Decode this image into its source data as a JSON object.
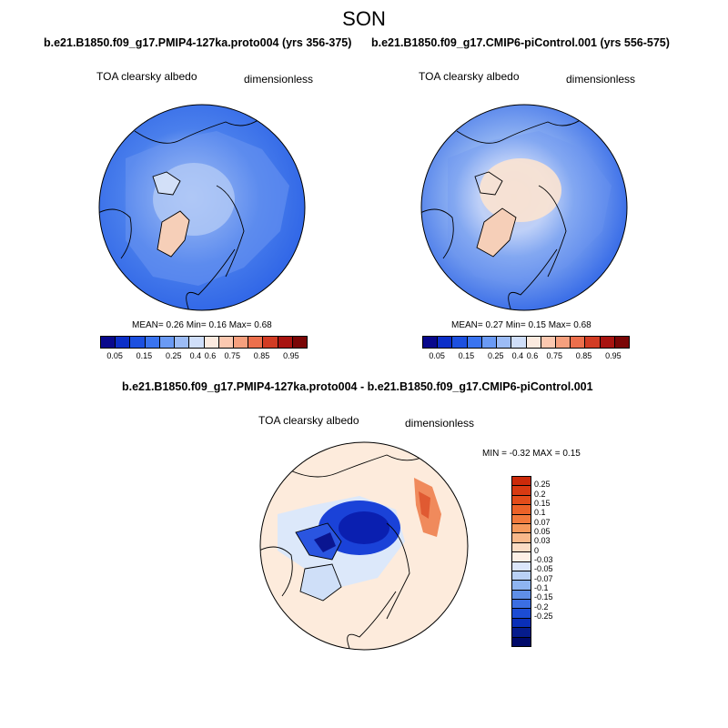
{
  "season": "SON",
  "left_panel": {
    "run_title": "b.e21.B1850.f09_g17.PMIP4-127ka.proto004 (yrs 356-375)",
    "field_label": "TOA clearsky albedo",
    "units": "dimensionless",
    "stats": "MEAN=   0.26  Min=   0.16  Max=   0.68"
  },
  "right_panel": {
    "run_title": "b.e21.B1850.f09_g17.CMIP6-piControl.001 (yrs 556-575)",
    "field_label": "TOA clearsky albedo",
    "units": "dimensionless",
    "stats": "MEAN=   0.27  Min=   0.15  Max=   0.68"
  },
  "diff_panel": {
    "run_title": "b.e21.B1850.f09_g17.PMIP4-127ka.proto004 - b.e21.B1850.f09_g17.CMIP6-piControl.001",
    "field_label": "TOA clearsky albedo",
    "units": "dimensionless",
    "stats": "MIN =  -0.32 MAX =   0.15"
  },
  "abs_colorbar": {
    "colors": [
      "#08088c",
      "#0c2fc8",
      "#1c50e0",
      "#3a74f0",
      "#6a9af4",
      "#9cbcf6",
      "#cfdef9",
      "#fbeadf",
      "#fbc8b0",
      "#f6a07e",
      "#ec6f4c",
      "#d23c24",
      "#a81410",
      "#7a0606"
    ],
    "ticks": [
      "0.05",
      "0.15",
      "0.25",
      "0.4",
      "0.6",
      "0.75",
      "0.85",
      "0.95"
    ]
  },
  "diff_colorbar": {
    "colors": [
      "#cc2a0a",
      "#d83a12",
      "#e34c1a",
      "#ec6228",
      "#f27a3c",
      "#f5995c",
      "#f8b88a",
      "#fbdcc4",
      "#fdf0e6",
      "#dbe6fa",
      "#b9d1f6",
      "#8eb4f0",
      "#5f8fe8",
      "#3b6ee2",
      "#1c4cd4",
      "#0a2fb8",
      "#061c8c",
      "#000a6a"
    ],
    "labels": [
      "0.25",
      "0.2",
      "0.15",
      "0.1",
      "0.07",
      "0.05",
      "0.03",
      "0",
      "-0.03",
      "-0.05",
      "-0.07",
      "-0.1",
      "-0.15",
      "-0.2",
      "-0.25"
    ]
  }
}
